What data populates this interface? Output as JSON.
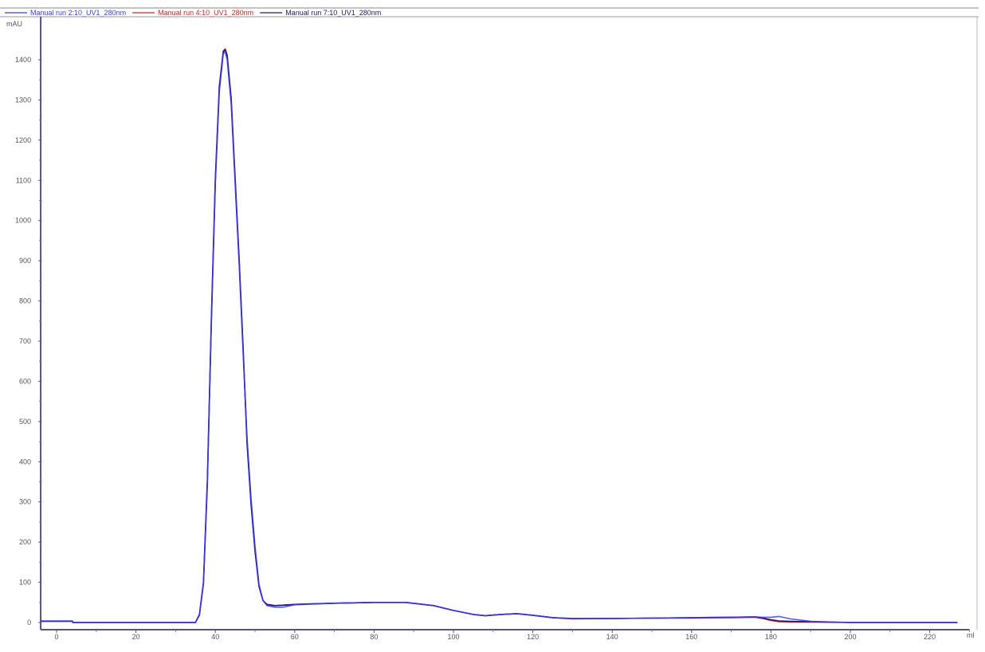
{
  "chart_data": {
    "type": "line",
    "title": "",
    "xlabel": "ml",
    "ylabel": "mAU",
    "xlim": [
      -4,
      230
    ],
    "ylim": [
      -20,
      1495
    ],
    "grid": false,
    "legend_placement": "top-left",
    "xticks": [
      0,
      20,
      40,
      60,
      80,
      100,
      120,
      140,
      160,
      180,
      200,
      220
    ],
    "yticks": [
      0,
      100,
      200,
      300,
      400,
      500,
      600,
      700,
      800,
      900,
      1000,
      1100,
      1200,
      1300,
      1400
    ],
    "x": [
      -4,
      4,
      4.1,
      35,
      36,
      37,
      38,
      39,
      40,
      41,
      42,
      42.5,
      43,
      44,
      45,
      46,
      47,
      48,
      49,
      50,
      51,
      52,
      53,
      55,
      57,
      60,
      70,
      80,
      88,
      95,
      100,
      105,
      108,
      112,
      116,
      120,
      125,
      130,
      140,
      150,
      160,
      170,
      176,
      178,
      180,
      182,
      185,
      190,
      200,
      227
    ],
    "series": [
      {
        "name": "Manual run 2:10_UV1_280nm",
        "color": "#3a3aff",
        "values": [
          4,
          4,
          0,
          0,
          18,
          95,
          340,
          740,
          1090,
          1320,
          1415,
          1420,
          1400,
          1290,
          1090,
          890,
          670,
          460,
          310,
          190,
          95,
          55,
          42,
          38,
          38,
          44,
          48,
          50,
          50,
          42,
          30,
          20,
          17,
          20,
          22,
          18,
          12,
          10,
          10,
          11,
          12,
          13,
          14,
          13,
          13,
          15,
          9,
          3,
          0,
          0
        ]
      },
      {
        "name": "Manual run 4:10_UV1_280nm",
        "color": "#e02020",
        "values": [
          3,
          3,
          0,
          0,
          20,
          100,
          355,
          755,
          1105,
          1335,
          1422,
          1427,
          1412,
          1305,
          1105,
          905,
          685,
          450,
          300,
          180,
          90,
          55,
          45,
          42,
          43,
          45,
          48,
          50,
          50,
          42,
          30,
          20,
          17,
          20,
          22,
          18,
          12,
          9,
          10,
          11,
          11,
          12,
          13,
          10,
          5,
          2,
          1,
          1,
          0,
          0
        ]
      },
      {
        "name": "Manual run 7:10_UV1_280nm",
        "color": "#1a1a6a",
        "values": [
          3,
          3,
          0,
          0,
          20,
          98,
          350,
          750,
          1100,
          1330,
          1420,
          1425,
          1408,
          1300,
          1100,
          900,
          680,
          445,
          295,
          178,
          90,
          55,
          45,
          42,
          43,
          45,
          48,
          50,
          50,
          42,
          30,
          20,
          17,
          20,
          22,
          18,
          12,
          10,
          10,
          11,
          12,
          13,
          14,
          11,
          7,
          4,
          3,
          2,
          0,
          0
        ]
      }
    ]
  }
}
